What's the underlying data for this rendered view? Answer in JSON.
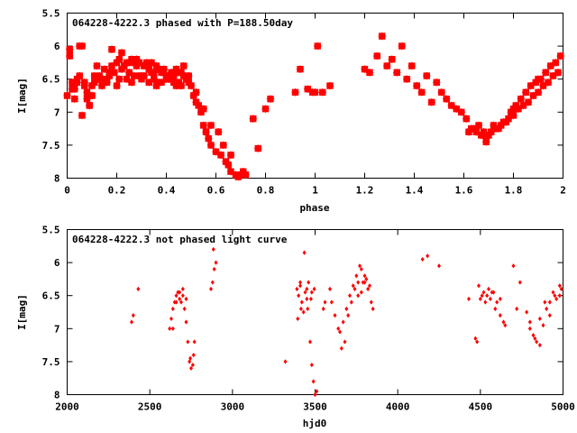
{
  "chart_data": [
    {
      "type": "scatter",
      "title": "064228-4222.3 phased with P=188.50day",
      "xlabel": "phase",
      "ylabel": "I[mag]",
      "xlim": [
        0,
        2
      ],
      "ylim": [
        8,
        5.5
      ],
      "y_inverted": true,
      "xticks": [
        "0",
        "0.2",
        "0.4",
        "0.6",
        "0.8",
        "1",
        "1.2",
        "1.4",
        "1.6",
        "1.8",
        "2"
      ],
      "yticks": [
        "5.5",
        "6",
        "6.5",
        "7",
        "7.5",
        "8"
      ],
      "marker": "star",
      "color": "#ff0000",
      "series": [
        {
          "x": [
            0.0,
            0.01,
            0.02,
            0.03,
            0.04,
            0.05,
            0.06,
            0.07,
            0.08,
            0.09,
            0.1,
            0.11,
            0.12,
            0.13,
            0.14,
            0.15,
            0.16,
            0.17,
            0.18,
            0.19,
            0.2,
            0.21,
            0.22,
            0.23,
            0.24,
            0.25,
            0.26,
            0.27,
            0.28,
            0.29,
            0.3,
            0.31,
            0.32,
            0.33,
            0.34,
            0.35,
            0.36,
            0.37,
            0.38,
            0.39,
            0.4,
            0.41,
            0.42,
            0.43,
            0.44,
            0.45,
            0.46,
            0.47,
            0.48,
            0.49,
            0.5,
            0.51,
            0.52,
            0.53,
            0.54,
            0.55,
            0.56,
            0.57,
            0.58,
            0.6,
            0.62,
            0.64,
            0.65,
            0.66,
            0.68,
            0.69,
            0.7,
            0.71,
            0.72,
            0.75,
            0.77,
            0.8,
            0.82,
            0.02,
            0.05,
            0.08,
            0.1,
            0.14,
            0.18,
            0.22,
            0.25,
            0.28,
            0.31,
            0.35,
            0.38,
            0.42,
            0.45,
            0.01,
            0.04,
            0.07,
            0.11,
            0.16,
            0.2,
            0.24,
            0.27,
            0.3,
            0.33,
            0.36,
            0.4,
            0.43,
            0.46,
            0.49,
            0.03,
            0.06,
            0.09,
            0.13,
            0.17,
            0.21,
            0.26,
            0.29,
            0.34,
            0.37,
            0.41,
            0.44,
            0.47,
            0.52,
            0.55,
            0.58,
            0.61,
            0.63,
            0.66,
            0.92,
            0.94,
            0.97,
            0.99,
            1.01,
            1.03,
            1.06,
            1.0,
            1.2,
            1.22,
            1.25,
            1.27,
            1.29,
            1.31,
            1.33,
            1.35,
            1.37,
            1.39,
            1.41,
            1.43,
            1.45,
            1.47,
            1.49,
            1.51,
            1.53,
            1.55,
            1.57,
            1.59,
            1.61,
            1.63,
            1.65,
            1.67,
            1.69,
            1.71,
            1.73,
            1.75,
            1.77,
            1.79,
            1.81,
            1.83,
            1.85,
            1.87,
            1.89,
            1.91,
            1.93,
            1.95,
            1.97,
            1.99,
            1.62,
            1.66,
            1.7,
            1.74,
            1.78,
            1.82,
            1.86,
            1.9,
            1.94,
            1.98,
            1.64,
            1.68,
            1.72,
            1.76,
            1.8,
            1.84,
            1.88,
            1.92,
            1.96,
            1.69,
            1.8,
            1.9
          ],
          "y": [
            6.75,
            6.05,
            6.55,
            6.8,
            6.5,
            6.45,
            6.0,
            6.55,
            6.7,
            6.9,
            6.6,
            6.55,
            6.3,
            6.45,
            6.5,
            6.35,
            6.55,
            6.45,
            6.3,
            6.4,
            6.25,
            6.2,
            6.35,
            6.3,
            6.25,
            6.4,
            6.2,
            6.25,
            6.3,
            6.25,
            6.45,
            6.3,
            6.25,
            6.35,
            6.25,
            6.4,
            6.3,
            6.35,
            6.4,
            6.35,
            6.45,
            6.5,
            6.4,
            6.45,
            6.35,
            6.4,
            6.4,
            6.3,
            6.5,
            6.45,
            6.6,
            6.75,
            6.85,
            6.9,
            7.0,
            7.2,
            7.3,
            7.4,
            7.5,
            7.6,
            7.65,
            7.75,
            7.8,
            7.9,
            7.95,
            7.98,
            7.95,
            7.9,
            7.95,
            7.1,
            7.55,
            6.95,
            6.8,
            6.65,
            6.0,
            6.8,
            6.75,
            6.6,
            6.05,
            6.1,
            6.25,
            6.2,
            6.45,
            6.5,
            6.55,
            6.5,
            6.55,
            6.15,
            6.55,
            6.6,
            6.45,
            6.5,
            6.6,
            6.5,
            6.45,
            6.5,
            6.55,
            6.6,
            6.5,
            6.55,
            6.6,
            6.55,
            6.65,
            7.05,
            6.9,
            6.5,
            6.4,
            6.5,
            6.55,
            6.45,
            6.4,
            6.55,
            6.5,
            6.6,
            6.45,
            6.7,
            6.95,
            7.2,
            7.3,
            7.5,
            7.65,
            6.7,
            6.35,
            6.65,
            6.7,
            6.0,
            6.7,
            6.6,
            6.7,
            6.35,
            6.4,
            6.15,
            5.85,
            6.3,
            6.2,
            6.4,
            6.0,
            6.5,
            6.3,
            6.6,
            6.7,
            6.45,
            6.85,
            6.55,
            6.7,
            6.8,
            6.9,
            6.95,
            7.0,
            7.1,
            7.25,
            7.3,
            7.35,
            7.4,
            7.3,
            7.25,
            7.2,
            7.15,
            7.0,
            6.9,
            6.8,
            6.7,
            6.6,
            6.55,
            6.5,
            6.4,
            6.3,
            6.25,
            6.15,
            7.3,
            7.2,
            7.35,
            7.25,
            7.1,
            6.95,
            6.85,
            6.7,
            6.55,
            6.4,
            7.25,
            7.3,
            7.2,
            7.15,
            7.05,
            6.9,
            6.75,
            6.6,
            6.45,
            7.45,
            6.95,
            6.5
          ]
        }
      ]
    },
    {
      "type": "scatter",
      "title": "064228-4222.3 not phased light curve",
      "xlabel": "hjd0",
      "ylabel": "I[mag]",
      "xlim": [
        2000,
        5000
      ],
      "ylim": [
        8,
        5.5
      ],
      "y_inverted": true,
      "xticks": [
        "2000",
        "2500",
        "3000",
        "3500",
        "4000",
        "4500",
        "5000"
      ],
      "yticks": [
        "5.5",
        "6",
        "6.5",
        "7",
        "7.5",
        "8"
      ],
      "marker": "diamond",
      "color": "#ff0000",
      "series": [
        {
          "x": [
            2390,
            2400,
            2430,
            2620,
            2630,
            2640,
            2650,
            2660,
            2670,
            2680,
            2690,
            2700,
            2710,
            2720,
            2730,
            2740,
            2750,
            2760,
            2770,
            2640,
            2660,
            2680,
            2700,
            2720,
            2745,
            2765,
            2870,
            2880,
            2890,
            2900,
            2885,
            3320,
            3390,
            3400,
            3410,
            3420,
            3430,
            3440,
            3450,
            3460,
            3470,
            3480,
            3490,
            3500,
            3510,
            3395,
            3415,
            3435,
            3455,
            3475,
            3495,
            3410,
            3450,
            3480,
            3550,
            3560,
            3590,
            3600,
            3620,
            3640,
            3660,
            3680,
            3700,
            3720,
            3740,
            3760,
            3780,
            3800,
            3820,
            3840,
            3850,
            3650,
            3670,
            3690,
            3710,
            3730,
            3750,
            3770,
            3790,
            3810,
            3830,
            3760,
            3780,
            3800,
            4150,
            4180,
            4250,
            4430,
            4470,
            4480,
            4500,
            4520,
            4540,
            4560,
            4580,
            4600,
            4620,
            4640,
            4490,
            4510,
            4530,
            4550,
            4570,
            4590,
            4620,
            4650,
            4700,
            4720,
            4740,
            4780,
            4800,
            4820,
            4840,
            4860,
            4880,
            4900,
            4920,
            4940,
            4960,
            4980,
            4990,
            4800,
            4830,
            4860,
            4890,
            4920,
            4950,
            4980
          ],
          "y": [
            6.9,
            6.8,
            6.4,
            7.0,
            6.85,
            6.7,
            6.6,
            6.5,
            6.45,
            6.55,
            6.6,
            6.5,
            6.7,
            6.9,
            7.2,
            7.5,
            7.6,
            7.55,
            7.2,
            7.0,
            6.6,
            6.45,
            6.4,
            6.55,
            7.45,
            7.4,
            6.4,
            6.3,
            6.1,
            6.0,
            5.8,
            7.5,
            6.4,
            6.5,
            6.3,
            6.6,
            6.75,
            6.45,
            6.4,
            6.3,
            7.2,
            7.55,
            7.8,
            8.0,
            7.95,
            6.85,
            6.7,
            5.85,
            6.7,
            6.55,
            6.4,
            6.35,
            6.55,
            6.45,
            6.7,
            6.6,
            6.4,
            6.6,
            6.8,
            7.0,
            7.3,
            7.2,
            6.8,
            6.6,
            6.4,
            6.3,
            6.1,
            6.2,
            6.4,
            6.6,
            6.7,
            7.05,
            6.9,
            6.7,
            6.5,
            6.35,
            6.2,
            6.05,
            6.3,
            6.25,
            6.35,
            6.5,
            6.45,
            6.3,
            5.95,
            5.9,
            6.05,
            6.55,
            7.15,
            7.2,
            6.55,
            6.45,
            6.5,
            6.55,
            6.45,
            6.6,
            6.8,
            6.9,
            6.35,
            6.5,
            6.6,
            6.4,
            6.45,
            6.7,
            6.55,
            6.95,
            6.05,
            6.7,
            6.3,
            6.75,
            6.9,
            7.1,
            7.2,
            7.25,
            6.95,
            6.7,
            6.6,
            6.45,
            6.55,
            6.5,
            6.4,
            7.0,
            7.15,
            6.85,
            6.6,
            6.8,
            6.5,
            6.35
          ]
        }
      ]
    }
  ]
}
